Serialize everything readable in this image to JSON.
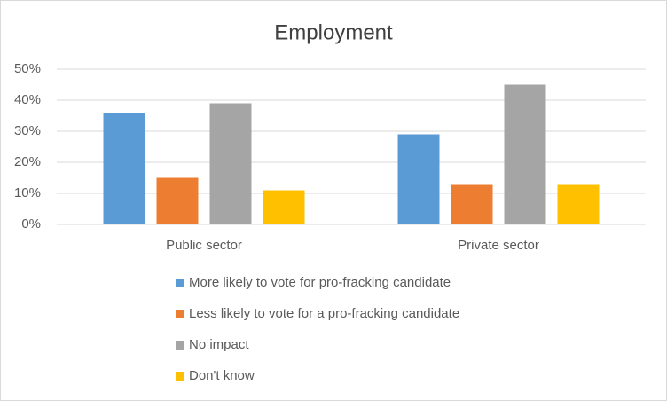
{
  "chart_data": {
    "type": "bar",
    "title": "Employment",
    "categories": [
      "Public sector",
      "Private sector"
    ],
    "series": [
      {
        "name": "More likely to vote for pro-fracking candidate",
        "color": "#5b9bd5",
        "values": [
          36,
          29
        ]
      },
      {
        "name": "Less likely to vote for a pro-fracking candidate",
        "color": "#ed7d31",
        "values": [
          15,
          13
        ]
      },
      {
        "name": "No impact",
        "color": "#a5a5a5",
        "values": [
          39,
          45
        ]
      },
      {
        "name": "Don't know",
        "color": "#ffc000",
        "values": [
          11,
          13
        ]
      }
    ],
    "ylim": [
      0,
      50
    ],
    "yticks": [
      {
        "value": 0,
        "label": "0%"
      },
      {
        "value": 10,
        "label": "10%"
      },
      {
        "value": 20,
        "label": "20%"
      },
      {
        "value": 30,
        "label": "30%"
      },
      {
        "value": 40,
        "label": "40%"
      },
      {
        "value": 50,
        "label": "50%"
      }
    ],
    "grid": true,
    "legend": "bottom"
  }
}
